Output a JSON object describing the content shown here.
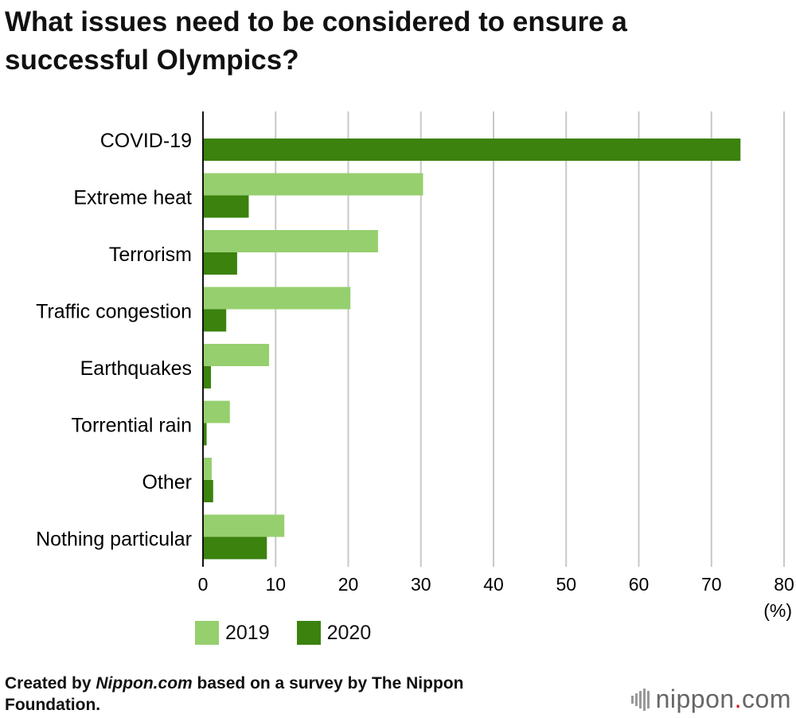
{
  "title": "What issues need to be considered to ensure a successful Olympics?",
  "chart_data": {
    "type": "bar",
    "orientation": "horizontal",
    "title": "What issues need to be considered to ensure a successful Olympics?",
    "categories": [
      "COVID-19",
      "Extreme heat",
      "Terrorism",
      "Traffic congestion",
      "Earthquakes",
      "Torrential rain",
      "Other",
      "Nothing particular"
    ],
    "series": [
      {
        "name": "2019",
        "color": "#96cf6e",
        "values": [
          null,
          30.3,
          24.1,
          20.3,
          9.1,
          3.7,
          1.2,
          11.2
        ]
      },
      {
        "name": "2020",
        "color": "#3b820e",
        "values": [
          74.0,
          6.3,
          4.7,
          3.2,
          1.1,
          0.5,
          1.4,
          8.8
        ]
      }
    ],
    "xlim": [
      0,
      80
    ],
    "xticks": [
      "0",
      "10",
      "20",
      "30",
      "40",
      "50",
      "60",
      "70",
      "80"
    ],
    "xunit": "(%)",
    "grid": true,
    "legend": "bottom"
  },
  "footer": {
    "prefix": "Created by ",
    "source": "Nippon.com",
    "suffix": " based on a survey by The Nippon Foundation."
  },
  "brand": {
    "name": "nippon",
    "dot": ".",
    "tld": "com"
  }
}
